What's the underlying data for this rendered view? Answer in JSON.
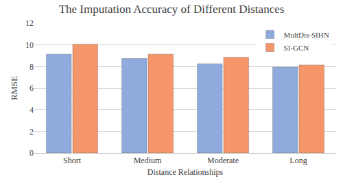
{
  "chart_data": {
    "type": "bar",
    "title": "The Imputation Accuracy of Different Distances",
    "x_label": "Distance Relationships",
    "y_label": "RMSE",
    "categories": [
      "Short",
      "Medium",
      "Moderate",
      "Long"
    ],
    "series": [
      {
        "name": "MultDis-SIHN",
        "color": "#8faadc",
        "values": [
          9.15,
          8.75,
          8.25,
          7.95
        ]
      },
      {
        "name": "SI-GCN",
        "color": "#f4956a",
        "values": [
          10.05,
          9.15,
          8.85,
          8.15
        ]
      }
    ],
    "ylim": [
      0,
      12
    ],
    "yticks": [
      0,
      2,
      4,
      6,
      8,
      10,
      12
    ],
    "grid": true,
    "legend": "top-right"
  }
}
